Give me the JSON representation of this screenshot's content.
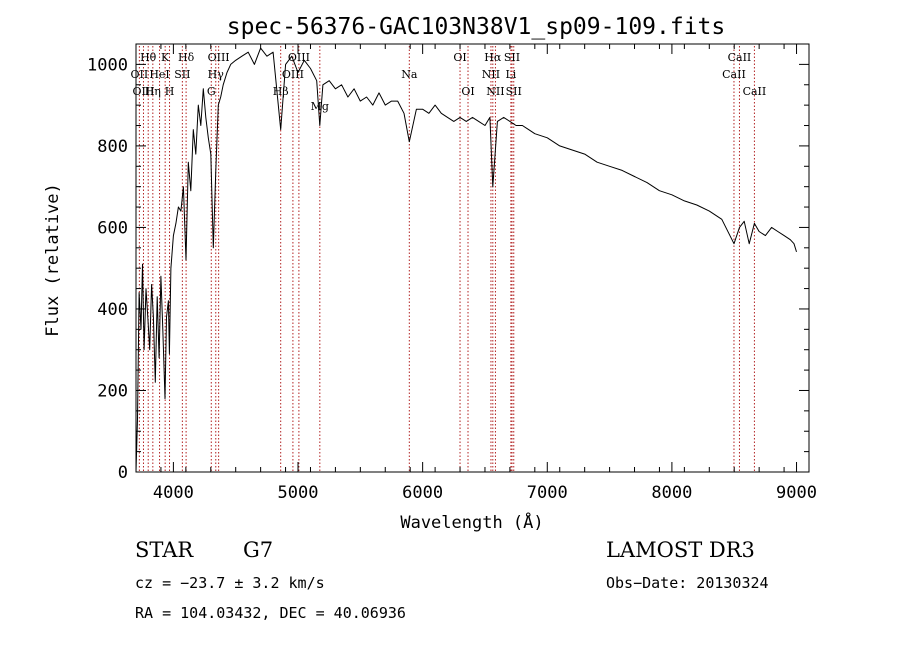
{
  "chart_data": {
    "type": "line",
    "title": "spec-56376-GAC103N38V1_sp09-109.fits",
    "xlabel": "Wavelength (Å)",
    "ylabel": "Flux (relative)",
    "xlim": [
      3700,
      9100
    ],
    "ylim": [
      0,
      1050
    ],
    "xticks": [
      4000,
      5000,
      6000,
      7000,
      8000,
      9000
    ],
    "yticks": [
      0,
      200,
      400,
      600,
      800,
      1000
    ],
    "x_tick_labels": [
      "4000",
      "5000",
      "6000",
      "7000",
      "8000",
      "9000"
    ],
    "y_tick_labels": [
      "0",
      "200",
      "400",
      "600",
      "800",
      "1000"
    ],
    "series": [
      {
        "name": "flux",
        "x": [
          3700,
          3712,
          3725,
          3740,
          3752,
          3765,
          3780,
          3795,
          3810,
          3825,
          3840,
          3855,
          3870,
          3885,
          3900,
          3915,
          3933,
          3945,
          3960,
          3968,
          3980,
          4000,
          4020,
          4040,
          4060,
          4080,
          4101,
          4120,
          4140,
          4160,
          4180,
          4200,
          4220,
          4240,
          4260,
          4280,
          4300,
          4320,
          4340,
          4360,
          4380,
          4400,
          4430,
          4460,
          4500,
          4550,
          4600,
          4650,
          4700,
          4750,
          4800,
          4861,
          4900,
          4950,
          5000,
          5050,
          5100,
          5150,
          5175,
          5200,
          5250,
          5300,
          5350,
          5400,
          5450,
          5500,
          5550,
          5600,
          5650,
          5700,
          5750,
          5800,
          5850,
          5893,
          5950,
          6000,
          6050,
          6100,
          6150,
          6200,
          6250,
          6300,
          6350,
          6400,
          6450,
          6500,
          6540,
          6563,
          6600,
          6650,
          6700,
          6750,
          6800,
          6850,
          6900,
          7000,
          7100,
          7200,
          7300,
          7400,
          7500,
          7600,
          7700,
          7800,
          7900,
          8000,
          8100,
          8200,
          8300,
          8400,
          8498,
          8542,
          8580,
          8620,
          8662,
          8700,
          8750,
          8800,
          8850,
          8900,
          8950,
          8980,
          9000
        ],
        "y": [
          0,
          130,
          440,
          350,
          510,
          300,
          450,
          380,
          300,
          460,
          380,
          220,
          430,
          280,
          480,
          350,
          180,
          380,
          420,
          290,
          500,
          580,
          610,
          650,
          640,
          700,
          520,
          760,
          690,
          840,
          780,
          900,
          850,
          940,
          870,
          820,
          780,
          550,
          740,
          900,
          920,
          950,
          980,
          1000,
          1010,
          1020,
          1030,
          1000,
          1040,
          1020,
          1030,
          840,
          1000,
          1020,
          980,
          1010,
          990,
          960,
          850,
          950,
          960,
          940,
          950,
          920,
          940,
          910,
          920,
          900,
          930,
          900,
          910,
          910,
          880,
          810,
          890,
          890,
          880,
          900,
          880,
          870,
          860,
          870,
          860,
          870,
          860,
          850,
          870,
          700,
          860,
          870,
          860,
          850,
          850,
          840,
          830,
          820,
          800,
          790,
          780,
          760,
          750,
          740,
          725,
          710,
          690,
          680,
          665,
          655,
          640,
          620,
          560,
          600,
          615,
          560,
          610,
          590,
          580,
          600,
          590,
          580,
          570,
          560,
          540
        ]
      }
    ],
    "spectral_lines": [
      {
        "label": "Hθ",
        "x": 3798,
        "row": 0
      },
      {
        "label": "OII",
        "x": 3727,
        "row": 1
      },
      {
        "label": "OIII",
        "x": 3760,
        "row": 2
      },
      {
        "label": "Hη",
        "x": 3835,
        "row": 2
      },
      {
        "label": "HeI",
        "x": 3889,
        "row": 1
      },
      {
        "label": "K",
        "x": 3934,
        "row": 0
      },
      {
        "label": "H",
        "x": 3969,
        "row": 2
      },
      {
        "label": "SII",
        "x": 4072,
        "row": 1
      },
      {
        "label": "Hδ",
        "x": 4102,
        "row": 0
      },
      {
        "label": "OIII",
        "x": 4363,
        "row": 0
      },
      {
        "label": "Hγ",
        "x": 4340,
        "row": 1
      },
      {
        "label": "G",
        "x": 4304,
        "row": 2
      },
      {
        "label": "Hβ",
        "x": 4861,
        "row": 2
      },
      {
        "label": "OIII",
        "x": 4959,
        "row": 1
      },
      {
        "label": "OIII",
        "x": 5007,
        "row": 0
      },
      {
        "label": "Mg",
        "x": 5175,
        "row": 3
      },
      {
        "label": "Na",
        "x": 5893,
        "row": 1
      },
      {
        "label": "OI",
        "x": 6300,
        "row": 0
      },
      {
        "label": "OI",
        "x": 6364,
        "row": 2
      },
      {
        "label": "NII",
        "x": 6548,
        "row": 1
      },
      {
        "label": "Hα",
        "x": 6563,
        "row": 0
      },
      {
        "label": "NII",
        "x": 6584,
        "row": 2
      },
      {
        "label": "SII",
        "x": 6717,
        "row": 0
      },
      {
        "label": "Li",
        "x": 6708,
        "row": 1
      },
      {
        "label": "SII",
        "x": 6731,
        "row": 2
      },
      {
        "label": "CaII",
        "x": 8498,
        "row": 1
      },
      {
        "label": "CaII",
        "x": 8542,
        "row": 0
      },
      {
        "label": "CaII",
        "x": 8662,
        "row": 2
      }
    ]
  },
  "info": {
    "object_class": "STAR",
    "subclass": "G7",
    "survey": "LAMOST DR3",
    "cz": "cz = −23.7 ± 3.2 km/s",
    "obs_date": "Obs−Date: 20130324",
    "coords": "RA = 104.03432, DEC =  40.06936"
  }
}
